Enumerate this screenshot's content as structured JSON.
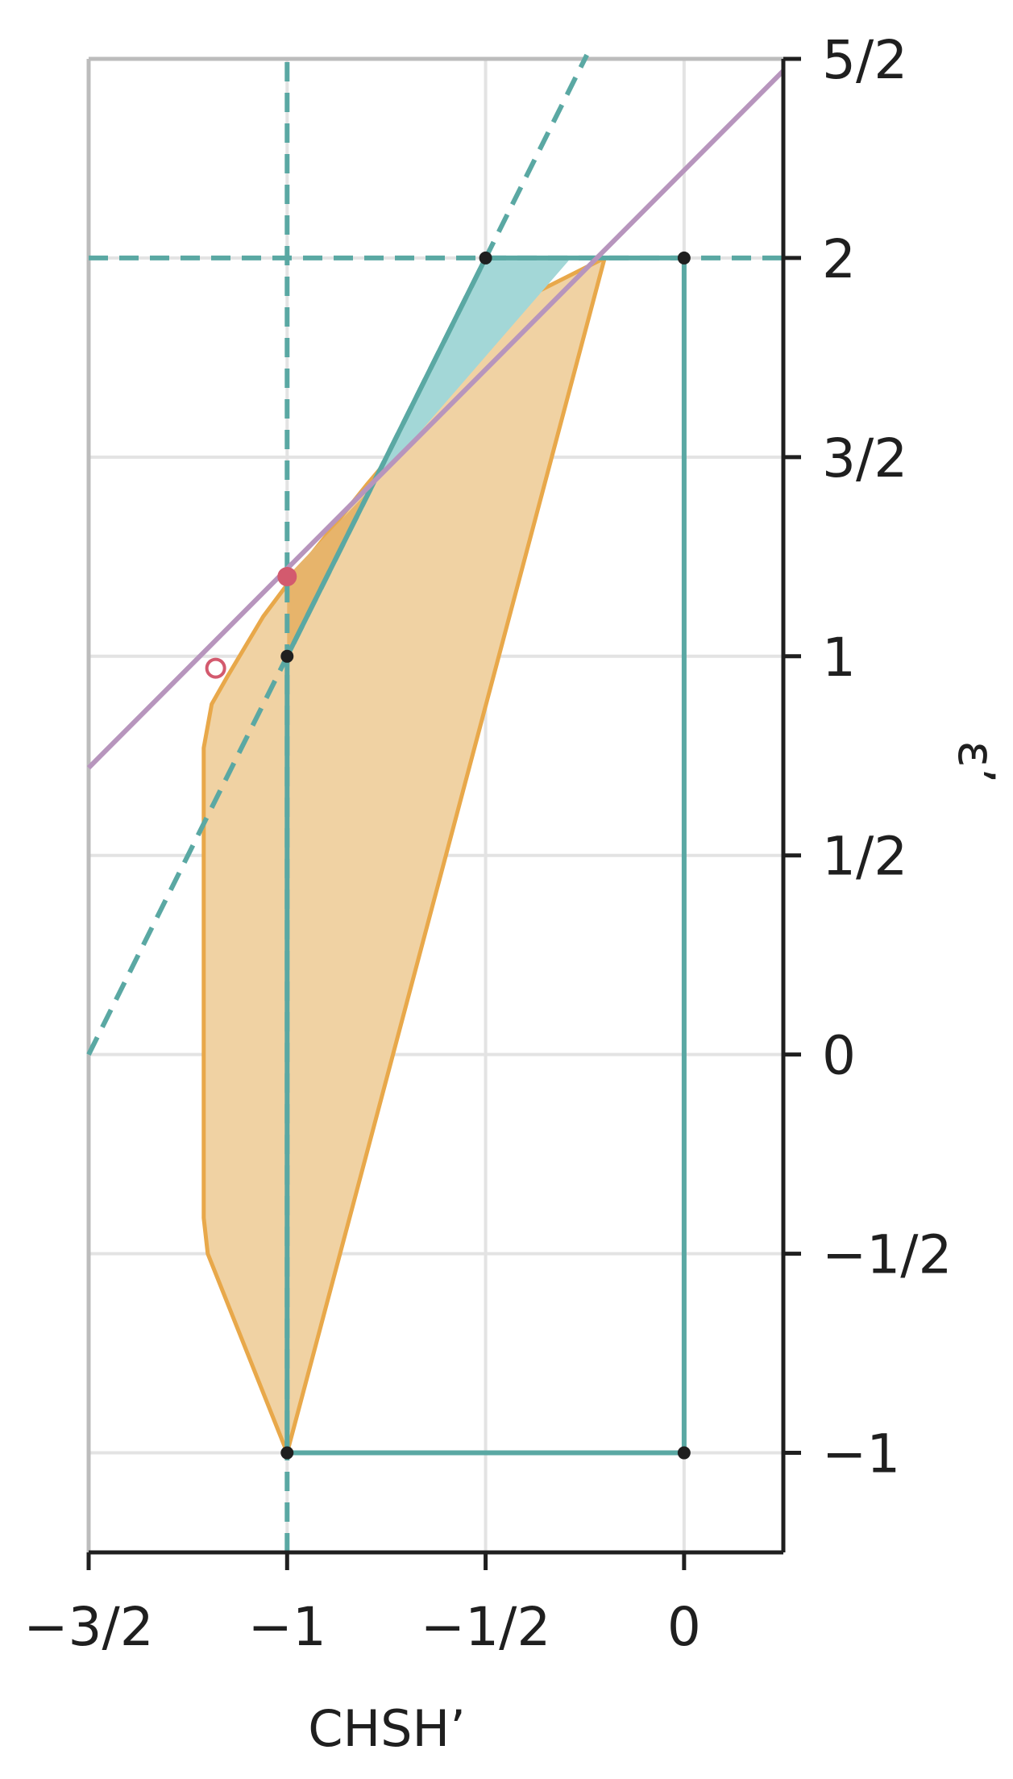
{
  "chart_data": {
    "type": "line",
    "title": "",
    "xlabel": "CHSH’",
    "ylabel": "ε’",
    "xlim": [
      -1.5,
      0.25
    ],
    "ylim": [
      -1.25,
      2.5
    ],
    "grid": true,
    "x_ticks": [
      {
        "value": -1.5,
        "label": "−3/2"
      },
      {
        "value": -1.0,
        "label": "−1"
      },
      {
        "value": -0.5,
        "label": "−1/2"
      },
      {
        "value": 0.0,
        "label": "0"
      }
    ],
    "y_ticks": [
      {
        "value": 2.5,
        "label": "5/2"
      },
      {
        "value": 2.0,
        "label": "2"
      },
      {
        "value": 1.5,
        "label": "3/2"
      },
      {
        "value": 1.0,
        "label": "1"
      },
      {
        "value": 0.5,
        "label": "1/2"
      },
      {
        "value": 0.0,
        "label": "0"
      },
      {
        "value": -0.5,
        "label": "−1/2"
      },
      {
        "value": -1.0,
        "label": "−1"
      }
    ],
    "regions": [
      {
        "kind": "orange-region",
        "color": "#e8a84a",
        "fill": "#f0d2a3",
        "points": [
          [
            -1.0,
            -1.0
          ],
          [
            -1.2,
            -0.5
          ],
          [
            -1.21,
            -0.41
          ],
          [
            -1.21,
            0.77
          ],
          [
            -1.19,
            0.88
          ],
          [
            -1.15,
            0.95
          ],
          [
            -1.06,
            1.1
          ],
          [
            -1.0,
            1.18
          ],
          [
            -0.8,
            1.43
          ],
          [
            -0.4,
            1.9
          ],
          [
            -0.2,
            2.0
          ]
        ]
      },
      {
        "kind": "orange-sliver",
        "fill": "#e7b46b",
        "points": [
          [
            -1.0,
            1.0
          ],
          [
            -1.0,
            1.2
          ],
          [
            -0.79,
            1.42
          ]
        ]
      },
      {
        "kind": "teal-triangle",
        "fill": "#a3d7d7",
        "points": [
          [
            -0.5,
            2.0
          ],
          [
            -0.285,
            2.0
          ],
          [
            -0.79,
            1.42
          ]
        ]
      }
    ],
    "series": [
      {
        "kind": "teal-polygon",
        "color": "#5aa8a3",
        "points": [
          [
            -1.0,
            -1.0
          ],
          [
            0.0,
            -1.0
          ],
          [
            0.0,
            2.0
          ],
          [
            -0.5,
            2.0
          ],
          [
            -1.0,
            1.0
          ],
          [
            -1.0,
            -1.0
          ]
        ]
      },
      {
        "kind": "teal-dashed-line",
        "color": "#5aa8a3",
        "dashed": true,
        "points": [
          [
            -1.5,
            0.0
          ],
          [
            -0.245,
            2.51
          ]
        ]
      },
      {
        "kind": "vertical-dashed-line",
        "color": "#5aa8a3",
        "dashed": true,
        "points": [
          [
            -1.0,
            -1.25
          ],
          [
            -1.0,
            2.5
          ]
        ]
      },
      {
        "kind": "horizontal-dashed-line",
        "color": "#5aa8a3",
        "dashed": true,
        "points": [
          [
            -1.5,
            2.0
          ],
          [
            0.25,
            2.0
          ]
        ]
      },
      {
        "kind": "purple-line",
        "color": "#b795bd",
        "points": [
          [
            -1.5,
            0.72
          ],
          [
            0.25,
            2.47
          ]
        ]
      }
    ],
    "markers": [
      {
        "x": -1.0,
        "y": -1.0,
        "style": "dot",
        "color": "#1f1f1f"
      },
      {
        "x": 0.0,
        "y": -1.0,
        "style": "dot",
        "color": "#1f1f1f"
      },
      {
        "x": 0.0,
        "y": 2.0,
        "style": "dot",
        "color": "#1f1f1f"
      },
      {
        "x": -0.5,
        "y": 2.0,
        "style": "dot",
        "color": "#1f1f1f"
      },
      {
        "x": -1.0,
        "y": 1.0,
        "style": "dot",
        "color": "#1f1f1f"
      },
      {
        "x": -1.0,
        "y": 1.2,
        "style": "big-dot",
        "color": "#d35a6e"
      },
      {
        "x": -1.18,
        "y": 0.97,
        "style": "open-circle",
        "color": "#d35a6e"
      }
    ]
  }
}
